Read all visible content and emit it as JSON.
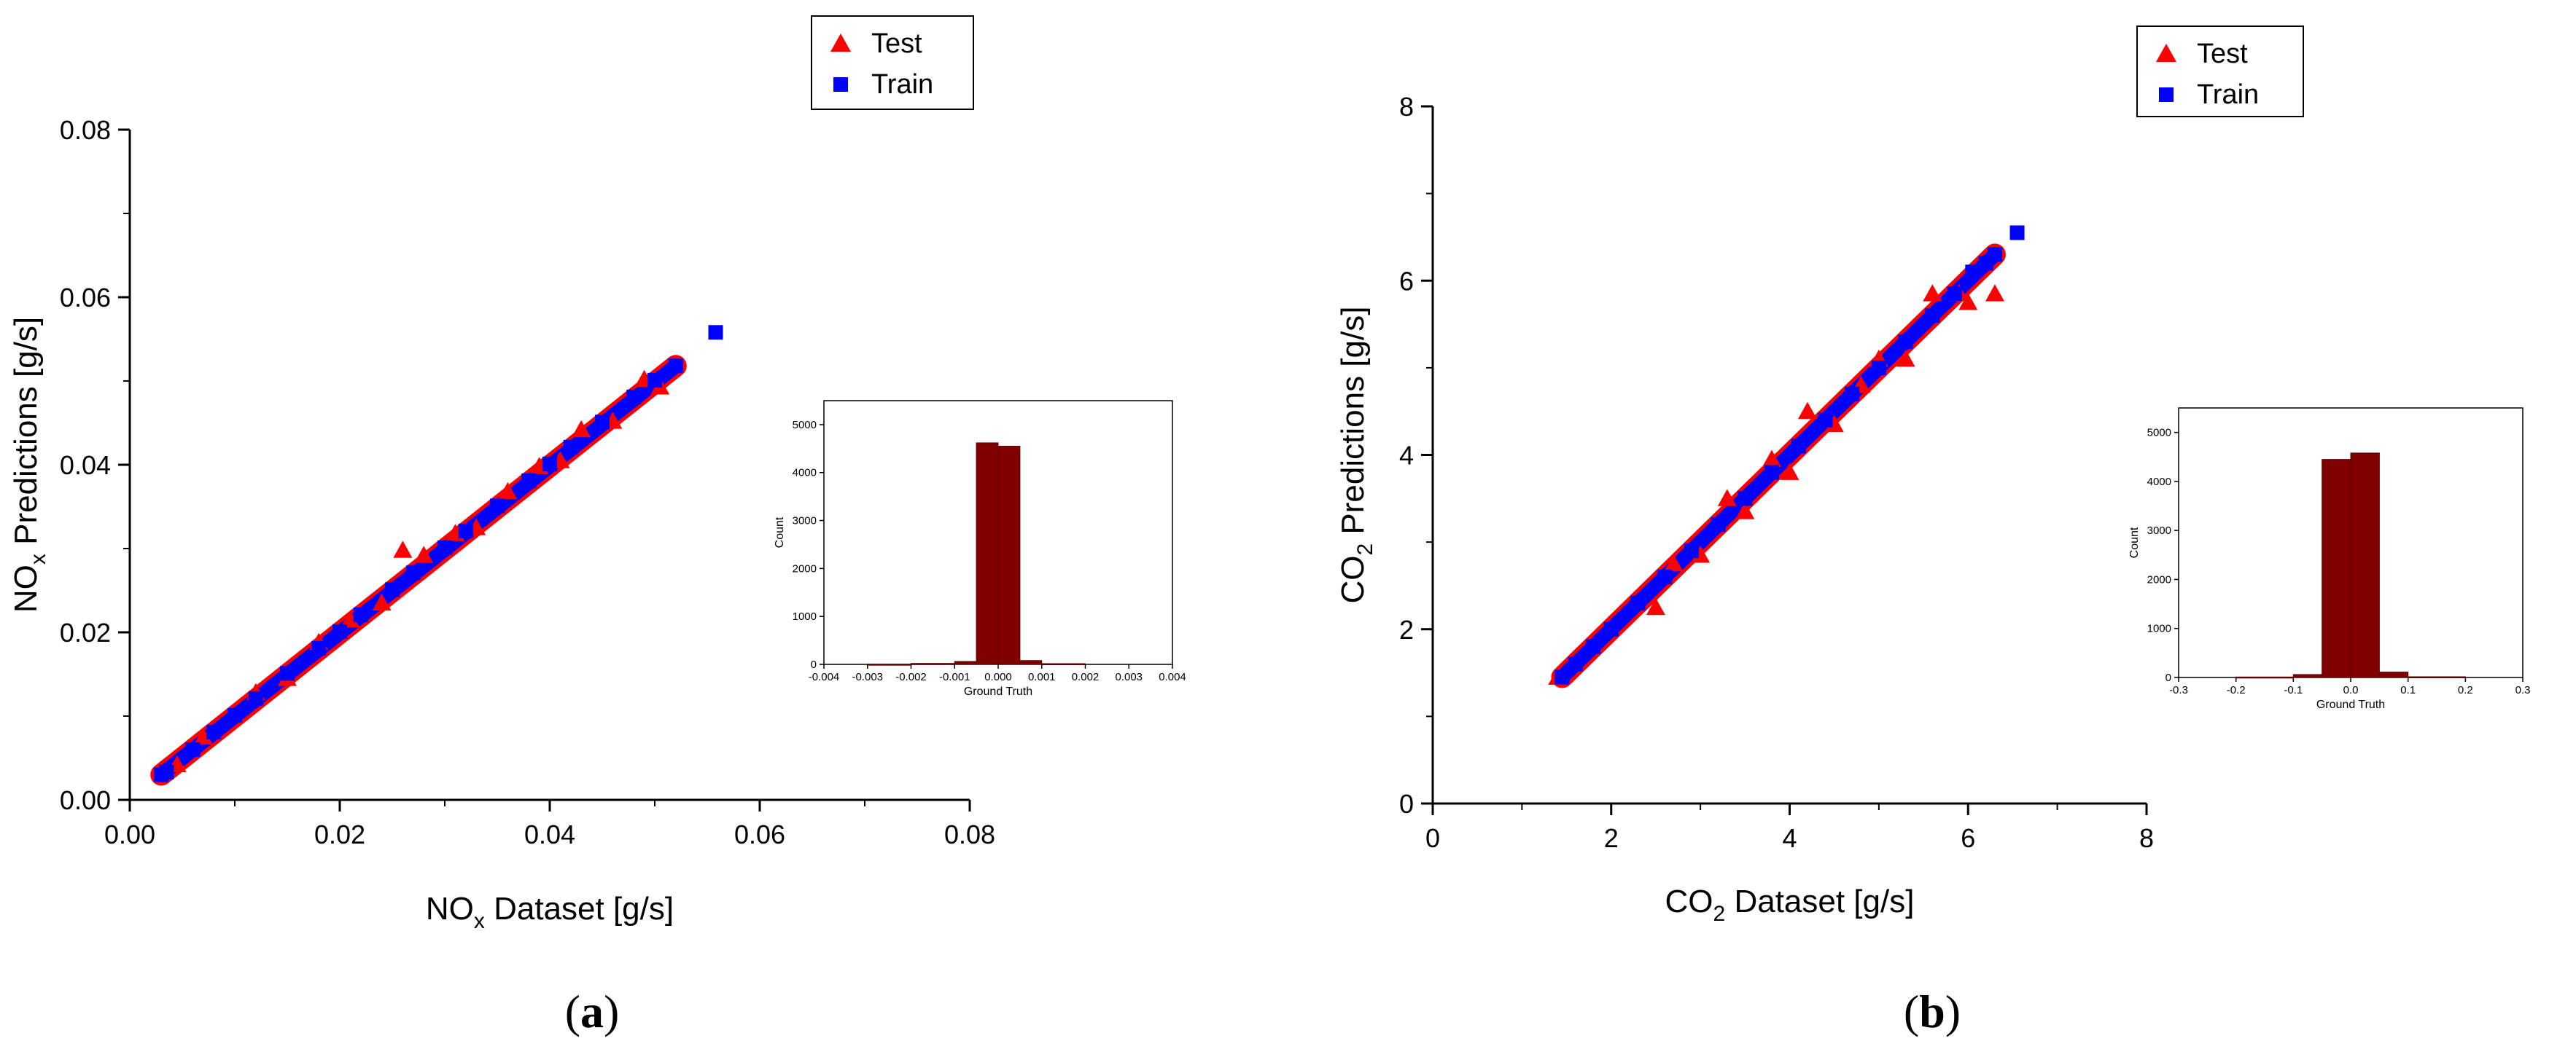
{
  "figure": {
    "panels": [
      {
        "label_open": "(",
        "label_letter": "a",
        "label_close": ")"
      },
      {
        "label_open": "(",
        "label_letter": "b",
        "label_close": ")"
      }
    ]
  },
  "chart_data": [
    {
      "type": "scatter",
      "panel": "a",
      "xlabel": {
        "main": "NO",
        "sub": "x",
        "rest": " Dataset [g/s]"
      },
      "ylabel": {
        "main": "NO",
        "sub": "x",
        "rest": " Predictions [g/s]"
      },
      "xlim": [
        0,
        0.08
      ],
      "ylim": [
        0,
        0.08
      ],
      "xticks": [
        "0.00",
        "0.02",
        "0.04",
        "0.06",
        "0.08"
      ],
      "yticks": [
        "0.00",
        "0.02",
        "0.04",
        "0.06",
        "0.08"
      ],
      "legend": [
        "Test",
        "Train"
      ],
      "legend_position": "top-right",
      "series": [
        {
          "name": "Train",
          "marker": "square",
          "color": "#0000ff",
          "x": [
            0.003,
            0.0035,
            0.006,
            0.008,
            0.01,
            0.012,
            0.015,
            0.018,
            0.02,
            0.022,
            0.025,
            0.027,
            0.03,
            0.032,
            0.035,
            0.038,
            0.04,
            0.042,
            0.045,
            0.048,
            0.05,
            0.052,
            0.0558
          ],
          "y": [
            0.003,
            0.0033,
            0.006,
            0.0081,
            0.0101,
            0.0121,
            0.0151,
            0.0181,
            0.0201,
            0.0221,
            0.0251,
            0.0271,
            0.0301,
            0.0321,
            0.0351,
            0.0381,
            0.0401,
            0.0421,
            0.0451,
            0.0481,
            0.0501,
            0.0518,
            0.0558
          ]
        },
        {
          "name": "Test",
          "marker": "triangle",
          "color": "#ff0000",
          "x": [
            0.0045,
            0.007,
            0.012,
            0.015,
            0.018,
            0.021,
            0.024,
            0.026,
            0.028,
            0.031,
            0.033,
            0.036,
            0.039,
            0.041,
            0.043,
            0.046,
            0.049,
            0.0505
          ],
          "y": [
            0.0042,
            0.0075,
            0.0128,
            0.0145,
            0.0188,
            0.0215,
            0.0235,
            0.0298,
            0.0292,
            0.0318,
            0.0325,
            0.0368,
            0.0398,
            0.0405,
            0.0442,
            0.0452,
            0.0502,
            0.0493
          ]
        }
      ],
      "inset": {
        "type": "bar",
        "xlabel": "Ground Truth",
        "ylabel": "Count",
        "xlim": [
          -0.004,
          0.004
        ],
        "ylim": [
          0,
          5500
        ],
        "xticks": [
          "-0.004",
          "-0.003",
          "-0.002",
          "-0.001",
          "0.000",
          "0.001",
          "0.002",
          "0.003",
          "0.004"
        ],
        "yticks": [
          "0",
          "1000",
          "2000",
          "3000",
          "4000",
          "5000"
        ],
        "color": "#800000",
        "bins": [
          {
            "x0": -0.003,
            "x1": -0.002,
            "count": 5
          },
          {
            "x0": -0.002,
            "x1": -0.001,
            "count": 20
          },
          {
            "x0": -0.001,
            "x1": -0.0005,
            "count": 60
          },
          {
            "x0": -0.0005,
            "x1": 0.0,
            "count": 4620
          },
          {
            "x0": 0.0,
            "x1": 0.0005,
            "count": 4550
          },
          {
            "x0": 0.0005,
            "x1": 0.001,
            "count": 80
          },
          {
            "x0": 0.001,
            "x1": 0.002,
            "count": 15
          }
        ]
      }
    },
    {
      "type": "scatter",
      "panel": "b",
      "xlabel": {
        "main": "CO",
        "sub": "2",
        "rest": " Dataset [g/s]"
      },
      "ylabel": {
        "main": "CO",
        "sub": "2",
        "rest": " Predictions [g/s]"
      },
      "xlim": [
        0,
        8
      ],
      "ylim": [
        0,
        8
      ],
      "xticks": [
        "0",
        "2",
        "4",
        "6",
        "8"
      ],
      "yticks": [
        "0",
        "2",
        "4",
        "6",
        "8"
      ],
      "legend": [
        "Test",
        "Train"
      ],
      "legend_position": "top-right",
      "series": [
        {
          "name": "Train",
          "marker": "square",
          "color": "#0000ff",
          "x": [
            1.45,
            1.6,
            1.8,
            2.0,
            2.3,
            2.6,
            2.9,
            3.2,
            3.5,
            3.8,
            4.1,
            4.4,
            4.7,
            5.0,
            5.3,
            5.6,
            5.85,
            6.05,
            6.2,
            6.3,
            6.55
          ],
          "y": [
            1.45,
            1.6,
            1.8,
            2.0,
            2.3,
            2.6,
            2.9,
            3.2,
            3.5,
            3.8,
            4.1,
            4.4,
            4.7,
            5.0,
            5.3,
            5.6,
            5.85,
            6.1,
            6.2,
            6.3,
            6.55
          ]
        },
        {
          "name": "Test",
          "marker": "triangle",
          "color": "#ff0000",
          "x": [
            1.4,
            2.5,
            2.7,
            3.0,
            3.3,
            3.5,
            3.8,
            4.0,
            4.2,
            4.5,
            4.8,
            5.0,
            5.3,
            5.6,
            5.9,
            6.0,
            6.3
          ],
          "y": [
            1.45,
            2.25,
            2.75,
            2.85,
            3.5,
            3.35,
            3.95,
            3.8,
            4.5,
            4.35,
            4.8,
            5.1,
            5.1,
            5.85,
            5.85,
            5.75,
            5.85
          ]
        }
      ],
      "inset": {
        "type": "bar",
        "xlabel": "Ground Truth",
        "ylabel": "Count",
        "xlim": [
          -0.3,
          0.3
        ],
        "ylim": [
          0,
          5500
        ],
        "xticks": [
          "-0.3",
          "-0.2",
          "-0.1",
          "0.0",
          "0.1",
          "0.2",
          "0.3"
        ],
        "yticks": [
          "0",
          "1000",
          "2000",
          "3000",
          "4000",
          "5000"
        ],
        "color": "#800000",
        "bins": [
          {
            "x0": -0.2,
            "x1": -0.1,
            "count": 10
          },
          {
            "x0": -0.1,
            "x1": -0.05,
            "count": 60
          },
          {
            "x0": -0.05,
            "x1": 0.0,
            "count": 4450
          },
          {
            "x0": 0.0,
            "x1": 0.05,
            "count": 4580
          },
          {
            "x0": 0.05,
            "x1": 0.1,
            "count": 110
          },
          {
            "x0": 0.1,
            "x1": 0.2,
            "count": 15
          }
        ]
      }
    }
  ]
}
